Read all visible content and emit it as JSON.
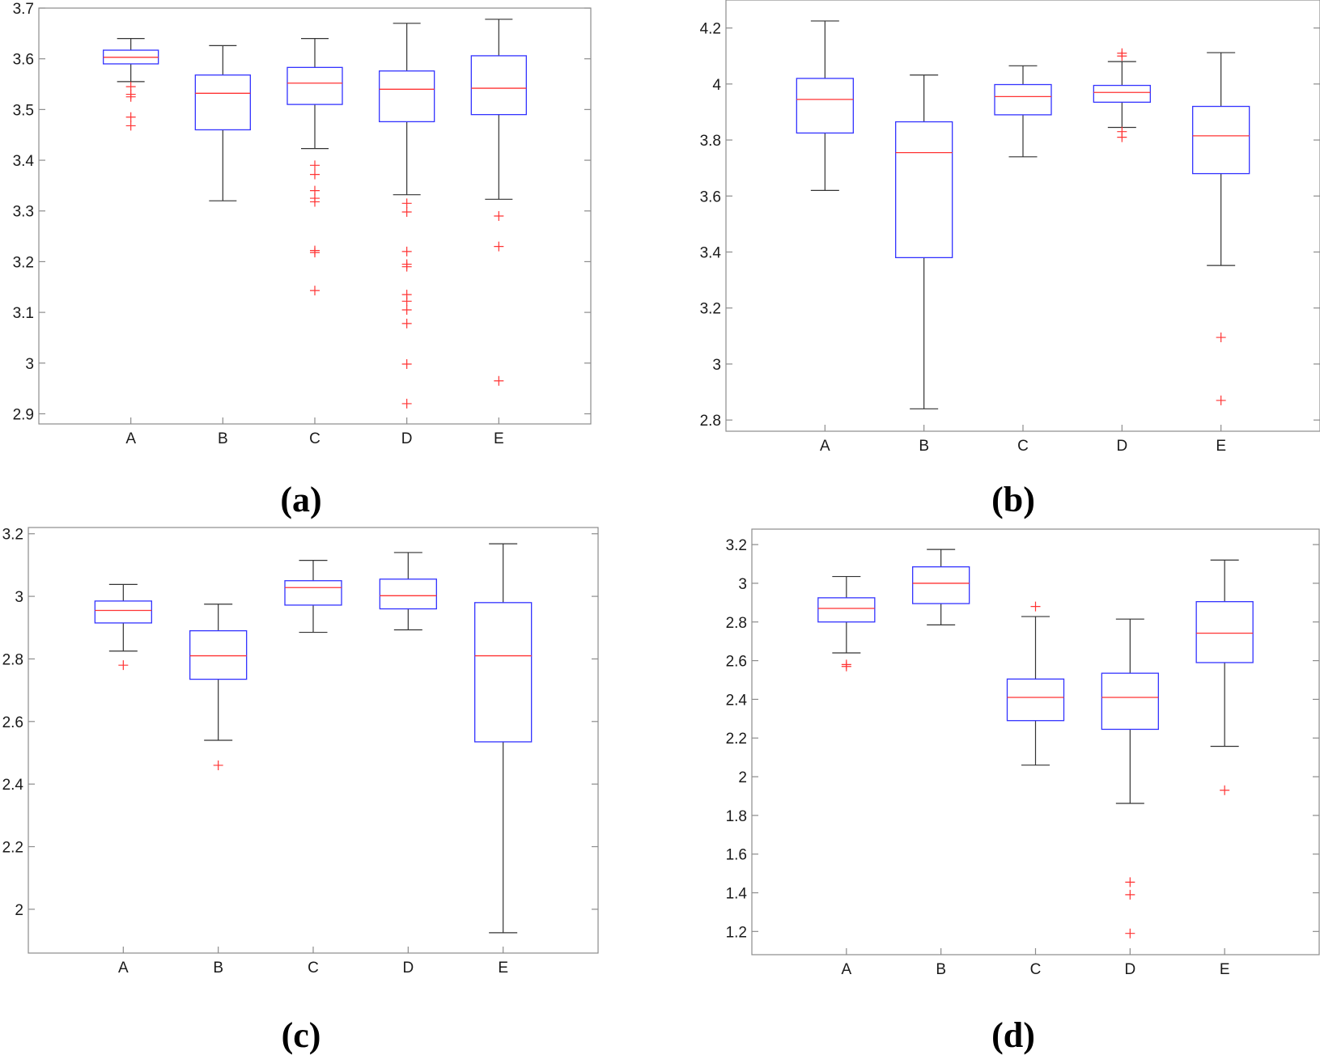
{
  "chart_data": [
    {
      "type": "boxplot",
      "panel": "(a)",
      "categories": [
        "A",
        "B",
        "C",
        "D",
        "E"
      ],
      "ylim": [
        2.88,
        3.7
      ],
      "yticks": [
        2.9,
        3,
        3.1,
        3.2,
        3.3,
        3.4,
        3.5,
        3.6,
        3.7
      ],
      "ytick_labels": [
        "2.9",
        "3",
        "3.1",
        "3.2",
        "3.3",
        "3.4",
        "3.5",
        "3.6",
        "3.7"
      ],
      "boxes": [
        {
          "category": "A",
          "whisker_low": 3.555,
          "q1": 3.59,
          "median": 3.603,
          "q3": 3.617,
          "whisker_high": 3.64,
          "outliers": [
            3.545,
            3.53,
            3.525,
            3.485,
            3.468
          ]
        },
        {
          "category": "B",
          "whisker_low": 3.32,
          "q1": 3.46,
          "median": 3.532,
          "q3": 3.568,
          "whisker_high": 3.626,
          "outliers": []
        },
        {
          "category": "C",
          "whisker_low": 3.423,
          "q1": 3.51,
          "median": 3.552,
          "q3": 3.583,
          "whisker_high": 3.64,
          "outliers": [
            3.39,
            3.372,
            3.34,
            3.325,
            3.318,
            3.222,
            3.218,
            3.143
          ]
        },
        {
          "category": "D",
          "whisker_low": 3.332,
          "q1": 3.476,
          "median": 3.54,
          "q3": 3.576,
          "whisker_high": 3.67,
          "outliers": [
            3.315,
            3.298,
            3.22,
            3.195,
            3.19,
            3.135,
            3.122,
            3.105,
            3.078,
            2.998,
            2.92
          ]
        },
        {
          "category": "E",
          "whisker_low": 3.323,
          "q1": 3.49,
          "median": 3.542,
          "q3": 3.606,
          "whisker_high": 3.678,
          "outliers": [
            3.29,
            3.23,
            2.965
          ]
        }
      ]
    },
    {
      "type": "boxplot",
      "panel": "(b)",
      "categories": [
        "A",
        "B",
        "C",
        "D",
        "E"
      ],
      "ylim": [
        2.76,
        4.3
      ],
      "yticks": [
        2.8,
        3,
        3.2,
        3.4,
        3.6,
        3.8,
        4,
        4.2
      ],
      "ytick_labels": [
        "2.8",
        "3",
        "3.2",
        "3.4",
        "3.6",
        "3.8",
        "4",
        "4.2"
      ],
      "boxes": [
        {
          "category": "A",
          "whisker_low": 3.62,
          "q1": 3.825,
          "median": 3.945,
          "q3": 4.02,
          "whisker_high": 4.225,
          "outliers": []
        },
        {
          "category": "B",
          "whisker_low": 2.84,
          "q1": 3.38,
          "median": 3.755,
          "q3": 3.865,
          "whisker_high": 4.032,
          "outliers": []
        },
        {
          "category": "C",
          "whisker_low": 3.74,
          "q1": 3.89,
          "median": 3.955,
          "q3": 3.998,
          "whisker_high": 4.065,
          "outliers": []
        },
        {
          "category": "D",
          "whisker_low": 3.845,
          "q1": 3.935,
          "median": 3.97,
          "q3": 3.995,
          "whisker_high": 4.08,
          "outliers": [
            4.11,
            4.1,
            3.83,
            3.81
          ]
        },
        {
          "category": "E",
          "whisker_low": 3.352,
          "q1": 3.68,
          "median": 3.815,
          "q3": 3.92,
          "whisker_high": 4.112,
          "outliers": [
            3.095,
            2.87
          ]
        }
      ]
    },
    {
      "type": "boxplot",
      "panel": "(c)",
      "categories": [
        "A",
        "B",
        "C",
        "D",
        "E"
      ],
      "ylim": [
        1.86,
        3.22
      ],
      "yticks": [
        2,
        2.2,
        2.4,
        2.6,
        2.8,
        3,
        3.2
      ],
      "ytick_labels": [
        "2",
        "2.2",
        "2.4",
        "2.6",
        "2.8",
        "3",
        "3.2"
      ],
      "boxes": [
        {
          "category": "A",
          "whisker_low": 2.825,
          "q1": 2.915,
          "median": 2.955,
          "q3": 2.985,
          "whisker_high": 3.038,
          "outliers": [
            2.78
          ]
        },
        {
          "category": "B",
          "whisker_low": 2.54,
          "q1": 2.735,
          "median": 2.81,
          "q3": 2.89,
          "whisker_high": 2.975,
          "outliers": [
            2.46
          ]
        },
        {
          "category": "C",
          "whisker_low": 2.885,
          "q1": 2.972,
          "median": 3.028,
          "q3": 3.05,
          "whisker_high": 3.115,
          "outliers": []
        },
        {
          "category": "D",
          "whisker_low": 2.893,
          "q1": 2.96,
          "median": 3.002,
          "q3": 3.055,
          "whisker_high": 3.14,
          "outliers": []
        },
        {
          "category": "E",
          "whisker_low": 1.925,
          "q1": 2.535,
          "median": 2.81,
          "q3": 2.98,
          "whisker_high": 3.168,
          "outliers": []
        }
      ]
    },
    {
      "type": "boxplot",
      "panel": "(d)",
      "categories": [
        "A",
        "B",
        "C",
        "D",
        "E"
      ],
      "ylim": [
        1.08,
        3.28
      ],
      "yticks": [
        1.2,
        1.4,
        1.6,
        1.8,
        2,
        2.2,
        2.4,
        2.6,
        2.8,
        3,
        3.2
      ],
      "ytick_labels": [
        "1.2",
        "1.4",
        "1.6",
        "1.8",
        "2",
        "2.2",
        "2.4",
        "2.6",
        "2.8",
        "3",
        "3.2"
      ],
      "boxes": [
        {
          "category": "A",
          "whisker_low": 2.64,
          "q1": 2.8,
          "median": 2.87,
          "q3": 2.925,
          "whisker_high": 3.035,
          "outliers": [
            2.58,
            2.57
          ]
        },
        {
          "category": "B",
          "whisker_low": 2.785,
          "q1": 2.895,
          "median": 3.0,
          "q3": 3.085,
          "whisker_high": 3.175,
          "outliers": []
        },
        {
          "category": "C",
          "whisker_low": 2.06,
          "q1": 2.29,
          "median": 2.41,
          "q3": 2.505,
          "whisker_high": 2.828,
          "outliers": [
            2.88
          ]
        },
        {
          "category": "D",
          "whisker_low": 1.862,
          "q1": 2.245,
          "median": 2.41,
          "q3": 2.535,
          "whisker_high": 2.815,
          "outliers": [
            1.455,
            1.39,
            1.19
          ]
        },
        {
          "category": "E",
          "whisker_low": 2.157,
          "q1": 2.59,
          "median": 2.742,
          "q3": 2.905,
          "whisker_high": 3.12,
          "outliers": [
            1.93
          ]
        }
      ]
    }
  ]
}
